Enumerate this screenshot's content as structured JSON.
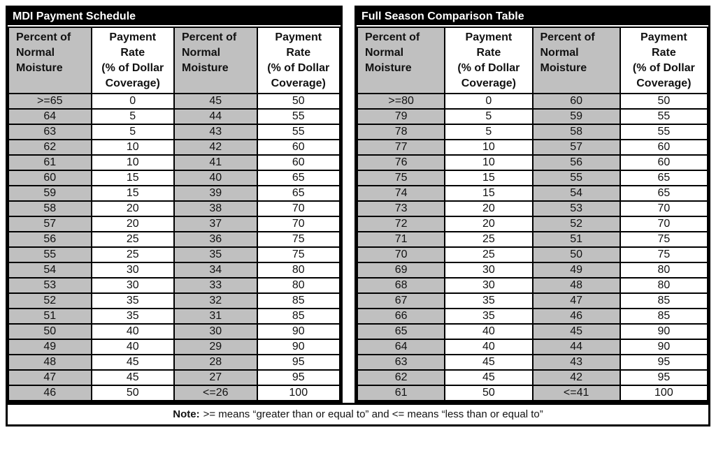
{
  "page": {
    "background": "#ffffff",
    "border_color": "#000000",
    "title_fill": "#000000",
    "title_text_color": "#ffffff",
    "moisture_column_fill": "#c0c0c0",
    "payment_column_fill": "#ffffff"
  },
  "tables": [
    {
      "title": "MDI Payment Schedule",
      "headers": [
        "Percent of\nNormal\nMoisture",
        "Payment\nRate\n(% of Dollar\nCoverage)",
        "Percent of\nNormal\nMoisture",
        "Payment\nRate\n(% of Dollar\nCoverage)"
      ],
      "rows": [
        [
          ">=65",
          "0",
          "45",
          "50"
        ],
        [
          "64",
          "5",
          "44",
          "55"
        ],
        [
          "63",
          "5",
          "43",
          "55"
        ],
        [
          "62",
          "10",
          "42",
          "60"
        ],
        [
          "61",
          "10",
          "41",
          "60"
        ],
        [
          "60",
          "15",
          "40",
          "65"
        ],
        [
          "59",
          "15",
          "39",
          "65"
        ],
        [
          "58",
          "20",
          "38",
          "70"
        ],
        [
          "57",
          "20",
          "37",
          "70"
        ],
        [
          "56",
          "25",
          "36",
          "75"
        ],
        [
          "55",
          "25",
          "35",
          "75"
        ],
        [
          "54",
          "30",
          "34",
          "80"
        ],
        [
          "53",
          "30",
          "33",
          "80"
        ],
        [
          "52",
          "35",
          "32",
          "85"
        ],
        [
          "51",
          "35",
          "31",
          "85"
        ],
        [
          "50",
          "40",
          "30",
          "90"
        ],
        [
          "49",
          "40",
          "29",
          "90"
        ],
        [
          "48",
          "45",
          "28",
          "95"
        ],
        [
          "47",
          "45",
          "27",
          "95"
        ],
        [
          "46",
          "50",
          "<=26",
          "100"
        ]
      ]
    },
    {
      "title": "Full Season Comparison Table",
      "headers": [
        "Percent of\nNormal\nMoisture",
        "Payment\nRate\n(% of Dollar\nCoverage)",
        "Percent of\nNormal\nMoisture",
        "Payment\nRate\n(% of Dollar\nCoverage)"
      ],
      "rows": [
        [
          ">=80",
          "0",
          "60",
          "50"
        ],
        [
          "79",
          "5",
          "59",
          "55"
        ],
        [
          "78",
          "5",
          "58",
          "55"
        ],
        [
          "77",
          "10",
          "57",
          "60"
        ],
        [
          "76",
          "10",
          "56",
          "60"
        ],
        [
          "75",
          "15",
          "55",
          "65"
        ],
        [
          "74",
          "15",
          "54",
          "65"
        ],
        [
          "73",
          "20",
          "53",
          "70"
        ],
        [
          "72",
          "20",
          "52",
          "70"
        ],
        [
          "71",
          "25",
          "51",
          "75"
        ],
        [
          "70",
          "25",
          "50",
          "75"
        ],
        [
          "69",
          "30",
          "49",
          "80"
        ],
        [
          "68",
          "30",
          "48",
          "80"
        ],
        [
          "67",
          "35",
          "47",
          "85"
        ],
        [
          "66",
          "35",
          "46",
          "85"
        ],
        [
          "65",
          "40",
          "45",
          "90"
        ],
        [
          "64",
          "40",
          "44",
          "90"
        ],
        [
          "63",
          "45",
          "43",
          "95"
        ],
        [
          "62",
          "45",
          "42",
          "95"
        ],
        [
          "61",
          "50",
          "<=41",
          "100"
        ]
      ]
    }
  ],
  "note": {
    "label": "Note:",
    "text": ">= means “greater than or equal to” and <= means “less than or equal to”"
  }
}
